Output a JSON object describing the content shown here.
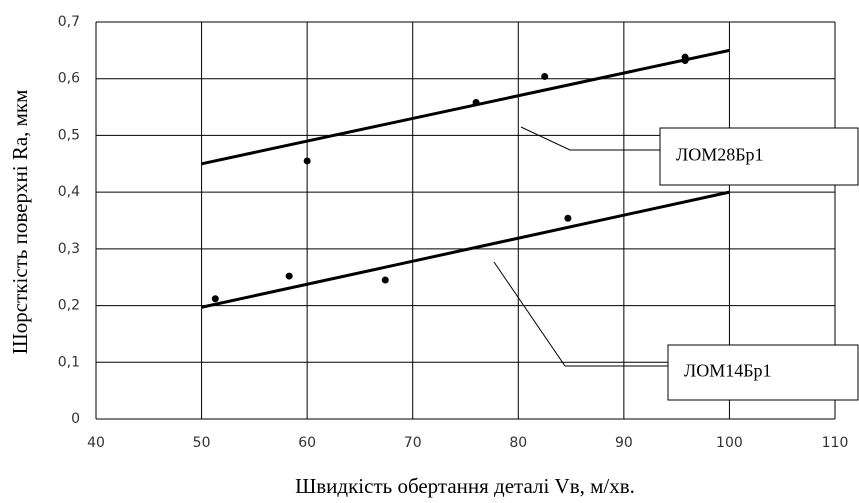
{
  "chart_data": {
    "type": "scatter",
    "x_label": "Швидкість обертання деталі Vв, м/хв.",
    "y_label": "Шорсткість поверхні Ra, мкм",
    "xlim": [
      40,
      110
    ],
    "xticks": [
      40,
      50,
      60,
      70,
      80,
      90,
      100,
      110
    ],
    "ylim": [
      0,
      0.7
    ],
    "yticks": [
      0,
      {
        "value": 0.1,
        "label": "0,1"
      },
      {
        "value": 0.2,
        "label": "0,2"
      },
      {
        "value": 0.3,
        "label": "0,3"
      },
      {
        "value": 0.4,
        "label": "0,4"
      },
      {
        "value": 0.5,
        "label": "0,5"
      },
      {
        "value": 0.6,
        "label": "0,6"
      },
      {
        "value": 0.7,
        "label": "0,7"
      }
    ],
    "grid": true,
    "series": [
      {
        "name": "ЛОМ28Бр1",
        "color": "#000000",
        "x": [
          60,
          76,
          82.5,
          95.8,
          95.8
        ],
        "values": [
          0.455,
          0.558,
          0.604,
          0.638,
          0.632
        ],
        "trendline": {
          "x": [
            50,
            100
          ],
          "values": [
            0.45,
            0.65
          ]
        }
      },
      {
        "name": "ЛОМ14Бр1",
        "color": "#000000",
        "x": [
          51.3,
          58.3,
          67.4,
          84.7
        ],
        "values": [
          0.212,
          0.252,
          0.245,
          0.354
        ],
        "trendline": {
          "x": [
            50,
            100
          ],
          "values": [
            0.197,
            0.4
          ]
        }
      }
    ]
  }
}
